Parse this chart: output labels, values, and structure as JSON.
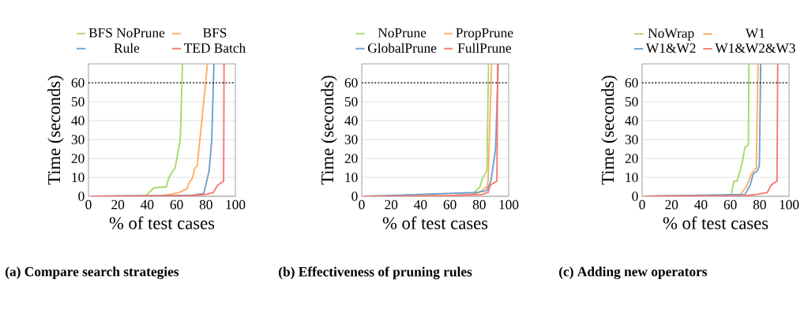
{
  "chart_data": [
    {
      "type": "line",
      "title": "(a) Compare search strategies",
      "xlabel": "% of test cases",
      "ylabel": "Time (seconds)",
      "xlim": [
        0,
        100
      ],
      "ylim": [
        0,
        70
      ],
      "xticks": [
        0,
        20,
        40,
        60,
        80,
        100
      ],
      "yticks": [
        0,
        10,
        20,
        30,
        40,
        50,
        60
      ],
      "grid": "y",
      "legend": "top",
      "ref_lines": [
        {
          "axis": "y",
          "value": 60,
          "color": "#000000",
          "line_style": "dotted"
        }
      ],
      "series": [
        {
          "name": "BFS NoPrune",
          "color": "#a6d96a",
          "x": [
            2,
            38,
            39.3,
            44.6,
            53,
            54.5,
            57,
            59,
            62.5,
            64
          ],
          "values": [
            0,
            0,
            0.5,
            4.5,
            5,
            9.4,
            12.9,
            15,
            30,
            70
          ]
        },
        {
          "name": "BFS",
          "color": "#fdae61",
          "x": [
            2,
            50,
            55,
            62,
            67,
            69,
            70.5,
            72.5,
            74,
            77.7,
            81
          ],
          "values": [
            0,
            0.3,
            1,
            2,
            4,
            8,
            9,
            15,
            16,
            44,
            70
          ]
        },
        {
          "name": "Rule",
          "color": "#6a9fd0",
          "x": [
            2,
            70,
            78.5,
            82.1,
            83.9,
            85.4
          ],
          "values": [
            0,
            0.5,
            1.5,
            13.3,
            29.7,
            70
          ]
        },
        {
          "name": "TED Batch",
          "color": "#f8766d",
          "x": [
            2,
            70,
            80,
            85,
            88,
            92,
            92.3
          ],
          "values": [
            0,
            0.3,
            1,
            2,
            5.9,
            8,
            70
          ]
        }
      ]
    },
    {
      "type": "line",
      "title": "(b) Effectiveness of pruning rules",
      "xlabel": "% of test cases",
      "ylabel": "Time (seconds)",
      "xlim": [
        0,
        100
      ],
      "ylim": [
        0,
        70
      ],
      "xticks": [
        0,
        20,
        40,
        60,
        80,
        100
      ],
      "yticks": [
        0,
        10,
        20,
        30,
        40,
        50,
        60
      ],
      "grid": "y",
      "legend": "top",
      "ref_lines": [
        {
          "axis": "y",
          "value": 60,
          "color": "#000000",
          "line_style": "dotted"
        }
      ],
      "series": [
        {
          "name": "NoPrune",
          "color": "#a6d96a",
          "x": [
            2,
            60,
            75,
            80.4,
            82.1,
            85.2,
            86.3
          ],
          "values": [
            0,
            0.3,
            1,
            4.9,
            9.4,
            13.6,
            70
          ]
        },
        {
          "name": "PropPrune",
          "color": "#fdae61",
          "x": [
            2,
            60,
            75,
            80,
            85,
            86,
            88.4
          ],
          "values": [
            0,
            0.3,
            1,
            2,
            5,
            8,
            70
          ]
        },
        {
          "name": "GlobalPrune",
          "color": "#6a9fd0",
          "x": [
            2,
            60,
            78,
            85,
            88,
            91.1,
            92.9
          ],
          "values": [
            0,
            null,
            2,
            3,
            8.3,
            25.2,
            70
          ]
        },
        {
          "name": "FullPrune",
          "color": "#f8766d",
          "x": [
            2,
            60,
            82,
            86,
            87.5,
            92,
            92.5
          ],
          "values": [
            0,
            0.3,
            1,
            2,
            5.9,
            8,
            70
          ]
        }
      ]
    },
    {
      "type": "line",
      "title": "(c) Adding new operators",
      "xlabel": "% of test cases",
      "ylabel": "Time (seconds)",
      "xlim": [
        0,
        100
      ],
      "ylim": [
        0,
        70
      ],
      "xticks": [
        0,
        20,
        40,
        60,
        80,
        100
      ],
      "yticks": [
        0,
        10,
        20,
        30,
        40,
        50,
        60
      ],
      "grid": "y",
      "legend": "top",
      "ref_lines": [
        {
          "axis": "y",
          "value": 60,
          "color": "#000000",
          "line_style": "dotted"
        }
      ],
      "series": [
        {
          "name": "NoWrap",
          "color": "#a6d96a",
          "x": [
            2,
            58.4,
            60.7,
            62.5,
            64.6,
            66.4,
            68.2,
            70,
            72.3,
            72.7
          ],
          "values": [
            0,
            0.5,
            1,
            8,
            8,
            13,
            18,
            26,
            27,
            70
          ]
        },
        {
          "name": "W1",
          "color": "#fdae61",
          "x": [
            2,
            66.4,
            70.9,
            74.5,
            77.7,
            78.9
          ],
          "values": [
            0,
            0.5,
            5,
            12,
            15,
            70
          ]
        },
        {
          "name": "W1&W2",
          "color": "#6a9fd0",
          "x": [
            2,
            70,
            73.6,
            75.7,
            78,
            79.8,
            80.7
          ],
          "values": [
            0,
            1,
            6,
            12,
            13,
            16,
            70
          ]
        },
        {
          "name": "W1&W2&W3",
          "color": "#f8766d",
          "x": [
            2,
            70,
            78,
            85.2,
            87.9,
            91.8,
            92.3
          ],
          "values": [
            0,
            0.3,
            1,
            2,
            6,
            8,
            70
          ]
        }
      ]
    }
  ]
}
